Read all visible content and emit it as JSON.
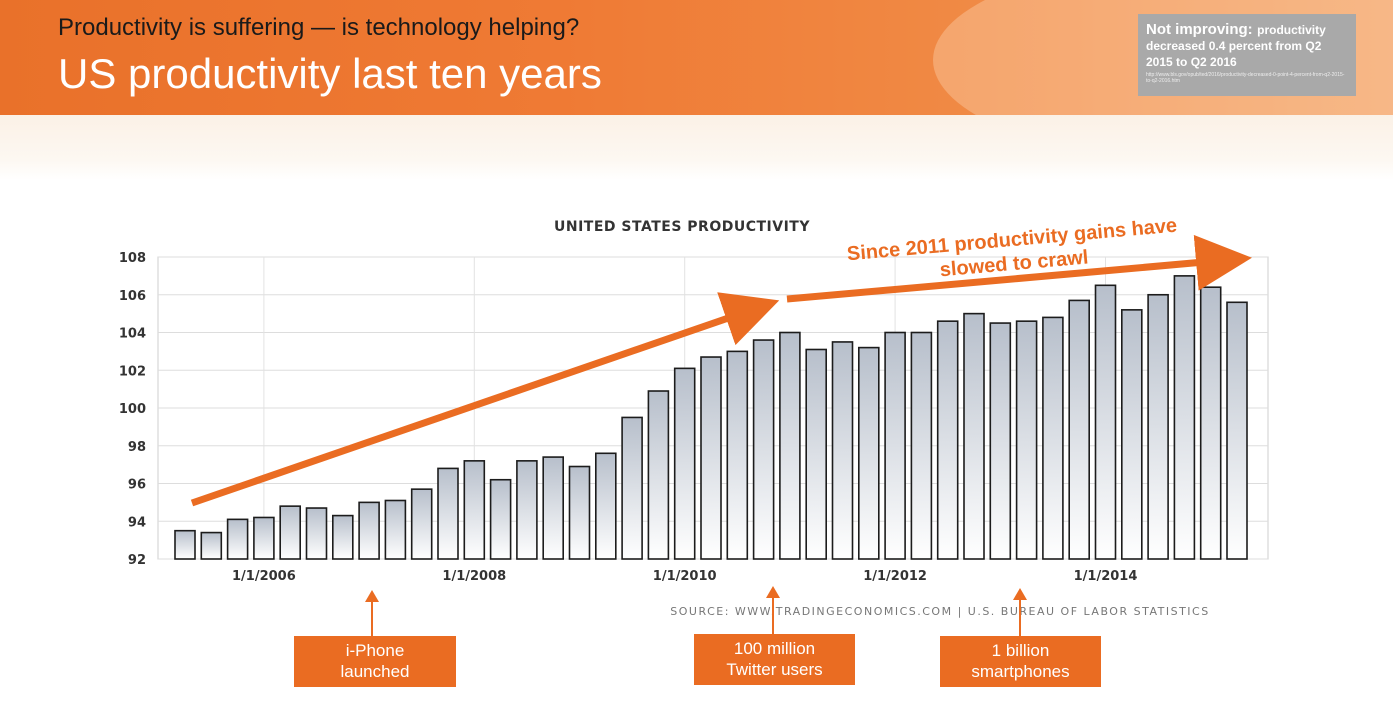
{
  "header": {
    "subtitle": "Productivity is suffering — is technology helping?",
    "title": "US productivity last ten years"
  },
  "note": {
    "lead": "Not improving:",
    "text": "productivity decreased 0.4 percent from Q2 2015 to Q2 2016",
    "url": "http://www.bls.gov/opub/ted/2016/productivity-decreased-0-point-4-percent-from-q2-2015-to-q2-2016.htm"
  },
  "chart_data": {
    "type": "bar",
    "title": "UNITED STATES PRODUCTIVITY",
    "source": "SOURCE: WWW.TRADINGECONOMICS.COM | U.S. BUREAU OF LABOR STATISTICS",
    "ylim": [
      92,
      108
    ],
    "yticks": [
      92,
      94,
      96,
      98,
      100,
      102,
      104,
      106,
      108
    ],
    "xtick_labels": [
      "1/1/2006",
      "1/1/2008",
      "1/1/2010",
      "1/1/2012",
      "1/1/2014"
    ],
    "values": [
      93.5,
      93.4,
      94.1,
      94.2,
      94.8,
      94.7,
      94.3,
      95.0,
      95.1,
      95.7,
      96.8,
      97.2,
      96.2,
      97.2,
      97.4,
      96.9,
      97.6,
      99.5,
      100.9,
      102.1,
      102.7,
      103.0,
      103.6,
      104.0,
      103.1,
      103.5,
      103.2,
      104.0,
      104.0,
      104.6,
      105.0,
      104.5,
      104.6,
      104.8,
      105.7,
      106.5,
      105.2,
      106.0,
      107.0,
      106.4,
      105.6
    ],
    "annotation": [
      "Since 2011 productivity gains have",
      "slowed to crawl"
    ]
  },
  "callouts": [
    {
      "line1": "i-Phone",
      "line2": "launched"
    },
    {
      "line1": "100 million",
      "line2": "Twitter users"
    },
    {
      "line1": "1 billion",
      "line2": "smartphones"
    }
  ],
  "colors": {
    "accent": "#ea6c22",
    "bar_top": "#b7bfcb",
    "bar_bottom": "#ffffff"
  }
}
